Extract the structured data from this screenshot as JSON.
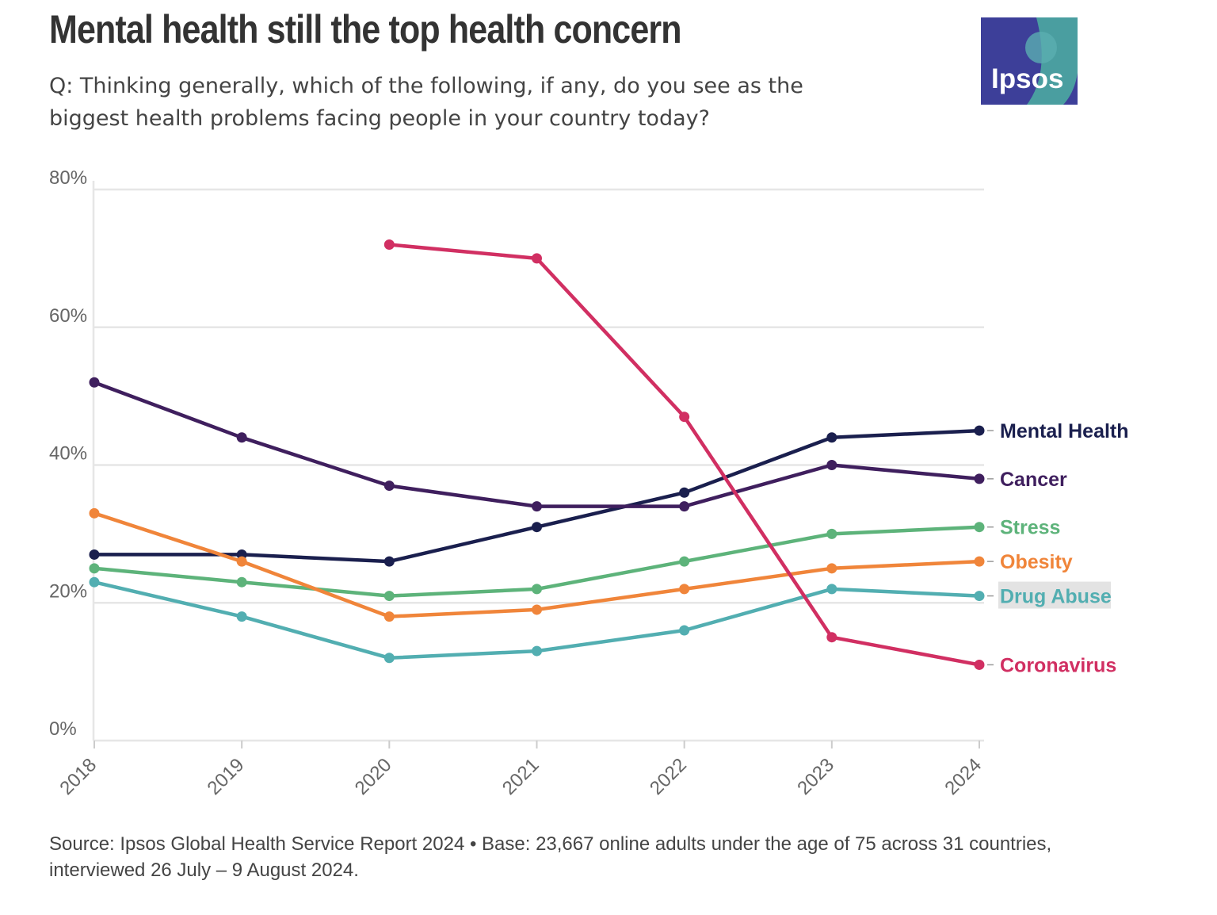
{
  "header": {
    "title": "Mental health still the top health concern",
    "subtitle": "Q: Thinking generally, which of the following, if any, do you see as the biggest health problems facing people in your country today?"
  },
  "logo": {
    "text": "Ipsos"
  },
  "footer": {
    "source": "Source: Ipsos Global Health Service Report 2024 • Base: 23,667 online adults under the age of 75 across 31 countries, interviewed 26 July – 9 August 2024."
  },
  "colors": {
    "mental_health": "#1a1f4e",
    "cancer": "#3f1f5e",
    "stress": "#5db37a",
    "obesity": "#f0853a",
    "drug_abuse": "#52aeb1",
    "coronavirus": "#d12f62",
    "grid": "#e6e6e6",
    "axis_text": "#666666"
  },
  "chart_data": {
    "type": "line",
    "x": [
      "2018",
      "2019",
      "2020",
      "2021",
      "2022",
      "2023",
      "2024"
    ],
    "ylim": [
      0,
      80
    ],
    "yticks": [
      "0%",
      "20%",
      "40%",
      "60%",
      "80%"
    ],
    "grid": true,
    "legend": "direct labels at right end of lines",
    "series": [
      {
        "name": "Mental Health",
        "color": "#1a1f4e",
        "values": [
          27,
          27,
          26,
          31,
          36,
          44,
          45
        ]
      },
      {
        "name": "Cancer",
        "color": "#3f1f5e",
        "values": [
          52,
          44,
          37,
          34,
          34,
          40,
          38
        ]
      },
      {
        "name": "Stress",
        "color": "#5db37a",
        "values": [
          25,
          23,
          21,
          22,
          26,
          30,
          31
        ]
      },
      {
        "name": "Obesity",
        "color": "#f0853a",
        "values": [
          33,
          26,
          18,
          19,
          22,
          25,
          26
        ]
      },
      {
        "name": "Drug Abuse",
        "color": "#52aeb1",
        "values": [
          23,
          18,
          12,
          13,
          16,
          22,
          21
        ],
        "highlighted": true
      },
      {
        "name": "Coronavirus",
        "color": "#d12f62",
        "values": [
          null,
          null,
          72,
          70,
          47,
          15,
          11
        ]
      }
    ]
  }
}
